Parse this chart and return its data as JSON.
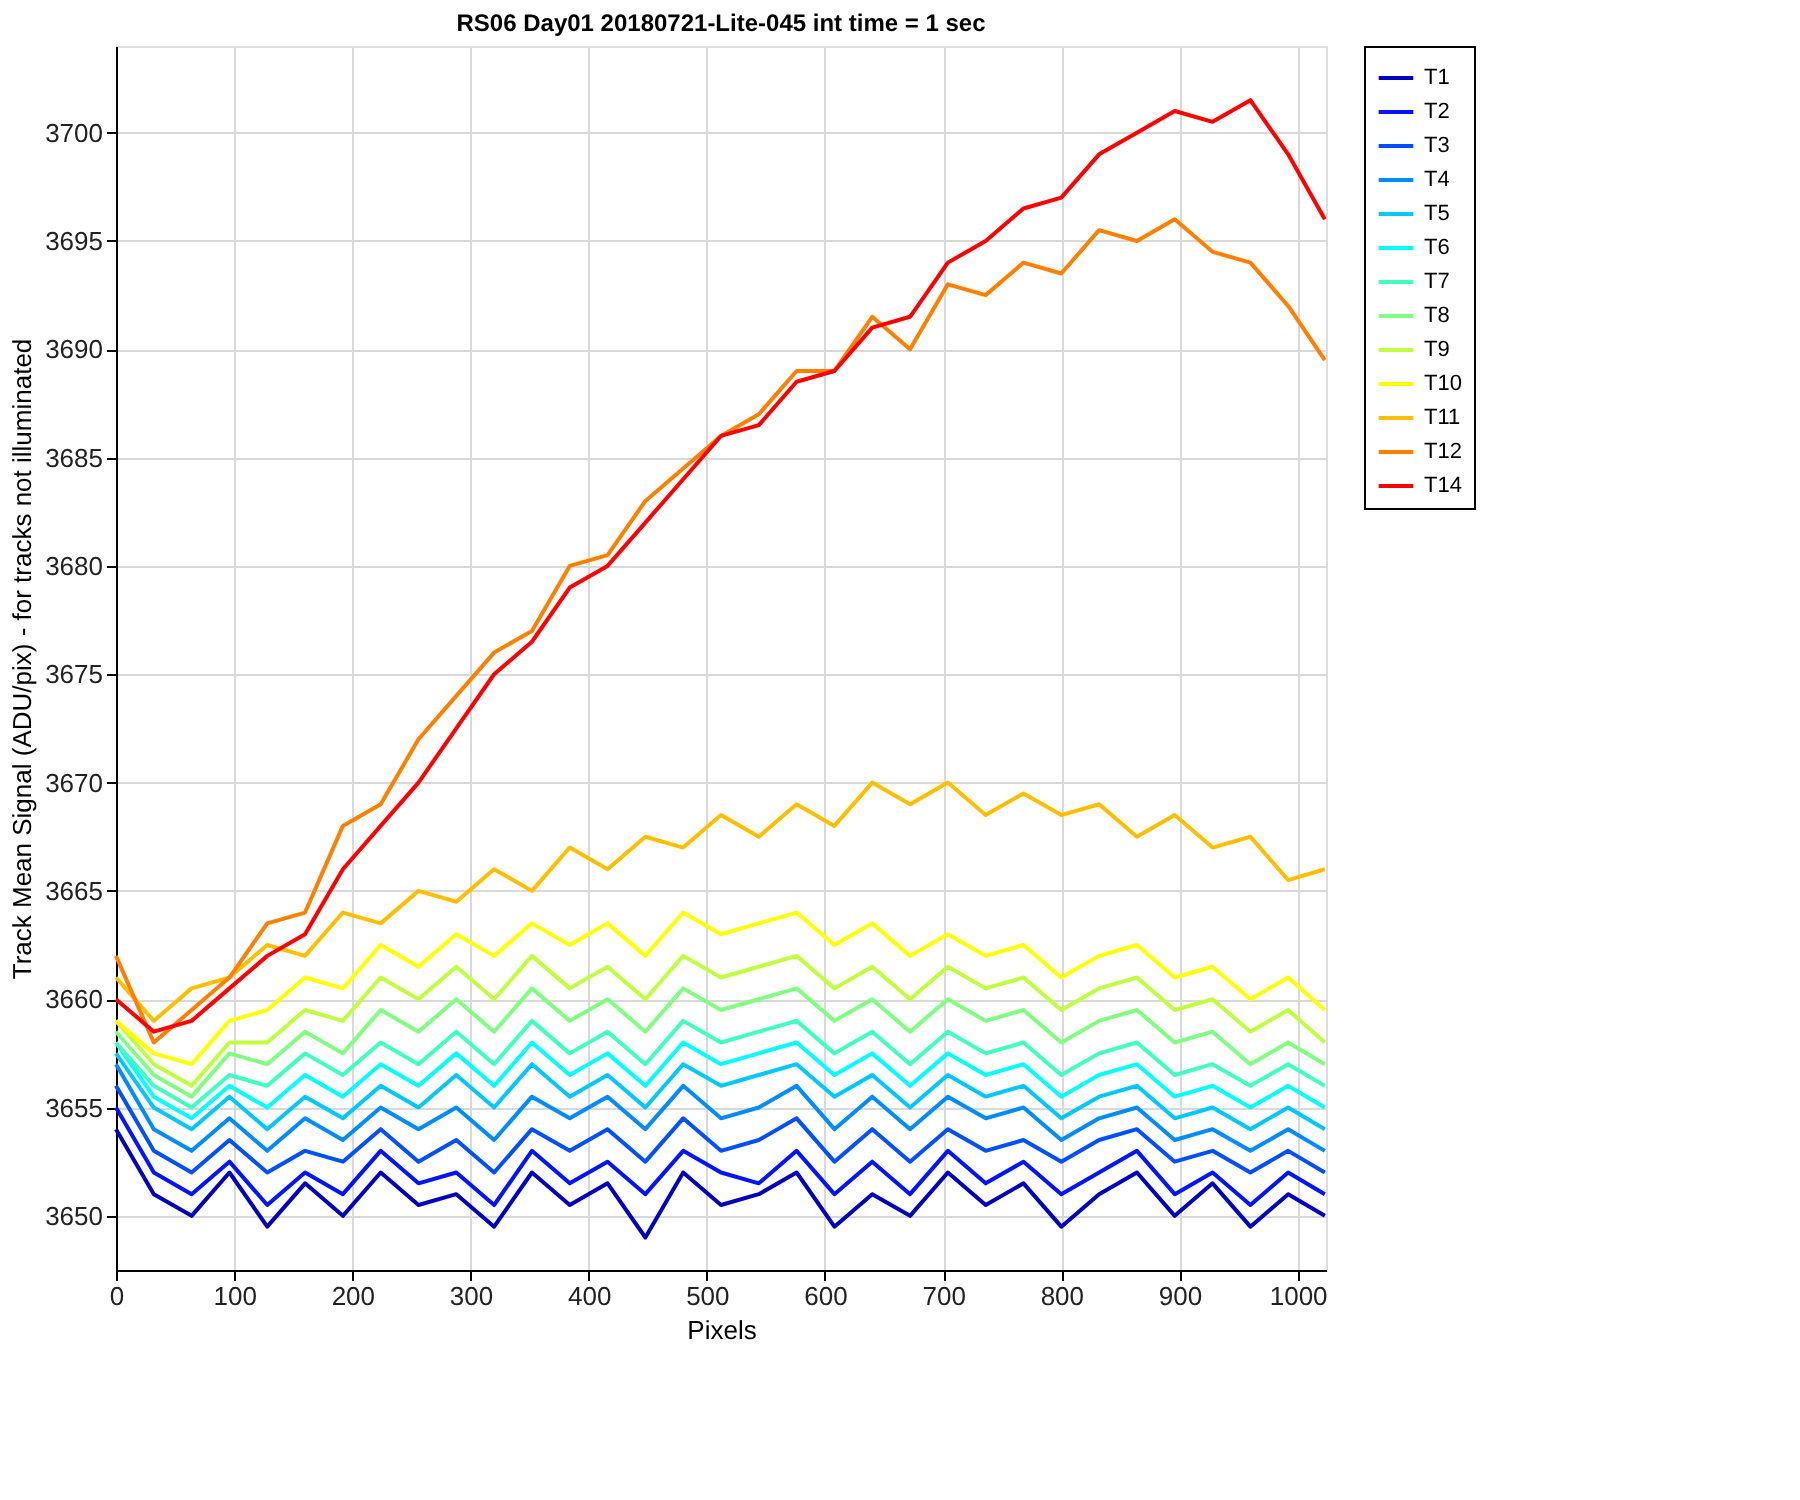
{
  "chart_data": {
    "type": "line",
    "title": "RS06 Day01 20180721-Lite-045 int time = 1 sec",
    "xlabel": "Pixels",
    "ylabel": "Track Mean Signal (ADU/pix) - for tracks not illuminated",
    "x": [
      0,
      32,
      64,
      96,
      128,
      160,
      192,
      224,
      256,
      288,
      320,
      352,
      384,
      416,
      448,
      480,
      512,
      544,
      576,
      608,
      640,
      672,
      704,
      736,
      768,
      800,
      832,
      864,
      896,
      928,
      960,
      992,
      1023
    ],
    "series": [
      {
        "name": "T1",
        "color": "#0000bf",
        "values": [
          3654,
          3651,
          3650,
          3652,
          3649.5,
          3651.5,
          3650,
          3652,
          3650.5,
          3651,
          3649.5,
          3652,
          3650.5,
          3651.5,
          3649,
          3652,
          3650.5,
          3651,
          3652,
          3649.5,
          3651,
          3650,
          3652,
          3650.5,
          3651.5,
          3649.5,
          3651,
          3652,
          3650,
          3651.5,
          3649.5,
          3651,
          3650
        ]
      },
      {
        "name": "T2",
        "color": "#0014ff",
        "values": [
          3655,
          3652,
          3651,
          3652.5,
          3650.5,
          3652,
          3651,
          3653,
          3651.5,
          3652,
          3650.5,
          3653,
          3651.5,
          3652.5,
          3651,
          3653,
          3652,
          3651.5,
          3653,
          3651,
          3652.5,
          3651,
          3653,
          3651.5,
          3652.5,
          3651,
          3652,
          3653,
          3651,
          3652,
          3650.5,
          3652,
          3651
        ]
      },
      {
        "name": "T3",
        "color": "#0050ff",
        "values": [
          3656,
          3653,
          3652,
          3653.5,
          3652,
          3653,
          3652.5,
          3654,
          3652.5,
          3653.5,
          3652,
          3654,
          3653,
          3654,
          3652.5,
          3654.5,
          3653,
          3653.5,
          3654.5,
          3652.5,
          3654,
          3652.5,
          3654,
          3653,
          3653.5,
          3652.5,
          3653.5,
          3654,
          3652.5,
          3653,
          3652,
          3653,
          3652
        ]
      },
      {
        "name": "T4",
        "color": "#008cff",
        "values": [
          3657,
          3654,
          3653,
          3654.5,
          3653,
          3654.5,
          3653.5,
          3655,
          3654,
          3655,
          3653.5,
          3655.5,
          3654.5,
          3655.5,
          3654,
          3656,
          3654.5,
          3655,
          3656,
          3654,
          3655.5,
          3654,
          3655.5,
          3654.5,
          3655,
          3653.5,
          3654.5,
          3655,
          3653.5,
          3654,
          3653,
          3654,
          3653
        ]
      },
      {
        "name": "T5",
        "color": "#00c8ff",
        "values": [
          3657.5,
          3655,
          3654,
          3655.5,
          3654,
          3655.5,
          3654.5,
          3656,
          3655,
          3656.5,
          3655,
          3657,
          3655.5,
          3656.5,
          3655,
          3657,
          3656,
          3656.5,
          3657,
          3655.5,
          3656.5,
          3655,
          3656.5,
          3655.5,
          3656,
          3654.5,
          3655.5,
          3656,
          3654.5,
          3655,
          3654,
          3655,
          3654
        ]
      },
      {
        "name": "T6",
        "color": "#00ffff",
        "values": [
          3658,
          3655.5,
          3654.5,
          3656,
          3655,
          3656.5,
          3655.5,
          3657,
          3656,
          3657.5,
          3656,
          3658,
          3656.5,
          3657.5,
          3656,
          3658,
          3657,
          3657.5,
          3658,
          3656.5,
          3657.5,
          3656,
          3657.5,
          3656.5,
          3657,
          3655.5,
          3656.5,
          3657,
          3655.5,
          3656,
          3655,
          3656,
          3655
        ]
      },
      {
        "name": "T7",
        "color": "#40ffc0",
        "values": [
          3658,
          3656,
          3655,
          3656.5,
          3656,
          3657.5,
          3656.5,
          3658,
          3657,
          3658.5,
          3657,
          3659,
          3657.5,
          3658.5,
          3657,
          3659,
          3658,
          3658.5,
          3659,
          3657.5,
          3658.5,
          3657,
          3658.5,
          3657.5,
          3658,
          3656.5,
          3657.5,
          3658,
          3656.5,
          3657,
          3656,
          3657,
          3656
        ]
      },
      {
        "name": "T8",
        "color": "#80ff80",
        "values": [
          3658.5,
          3656.5,
          3655.5,
          3657.5,
          3657,
          3658.5,
          3657.5,
          3659.5,
          3658.5,
          3660,
          3658.5,
          3660.5,
          3659,
          3660,
          3658.5,
          3660.5,
          3659.5,
          3660,
          3660.5,
          3659,
          3660,
          3658.5,
          3660,
          3659,
          3659.5,
          3658,
          3659,
          3659.5,
          3658,
          3658.5,
          3657,
          3658,
          3657
        ]
      },
      {
        "name": "T9",
        "color": "#c0ff40",
        "values": [
          3659,
          3657,
          3656,
          3658,
          3658,
          3659.5,
          3659,
          3661,
          3660,
          3661.5,
          3660,
          3662,
          3660.5,
          3661.5,
          3660,
          3662,
          3661,
          3661.5,
          3662,
          3660.5,
          3661.5,
          3660,
          3661.5,
          3660.5,
          3661,
          3659.5,
          3660.5,
          3661,
          3659.5,
          3660,
          3658.5,
          3659.5,
          3658
        ]
      },
      {
        "name": "T10",
        "color": "#ffff00",
        "values": [
          3659,
          3657.5,
          3657,
          3659,
          3659.5,
          3661,
          3660.5,
          3662.5,
          3661.5,
          3663,
          3662,
          3663.5,
          3662.5,
          3663.5,
          3662,
          3664,
          3663,
          3663.5,
          3664,
          3662.5,
          3663.5,
          3662,
          3663,
          3662,
          3662.5,
          3661,
          3662,
          3662.5,
          3661,
          3661.5,
          3660,
          3661,
          3659.5
        ]
      },
      {
        "name": "T11",
        "color": "#ffbf00",
        "values": [
          3661,
          3659,
          3660.5,
          3661,
          3662.5,
          3662,
          3664,
          3663.5,
          3665,
          3664.5,
          3666,
          3665,
          3667,
          3666,
          3667.5,
          3667,
          3668.5,
          3667.5,
          3669,
          3668,
          3670,
          3669,
          3670,
          3668.5,
          3669.5,
          3668.5,
          3669,
          3667.5,
          3668.5,
          3667,
          3667.5,
          3665.5,
          3666
        ]
      },
      {
        "name": "T12",
        "color": "#ff8000",
        "values": [
          3662,
          3658,
          3659.5,
          3661,
          3663.5,
          3664,
          3668,
          3669,
          3672,
          3674,
          3676,
          3677,
          3680,
          3680.5,
          3683,
          3684.5,
          3686,
          3687,
          3689,
          3689,
          3691.5,
          3690,
          3693,
          3692.5,
          3694,
          3693.5,
          3695.5,
          3695,
          3696,
          3694.5,
          3694,
          3692,
          3689.5
        ]
      },
      {
        "name": "T14",
        "color": "#ff0000",
        "values": [
          3660,
          3658.5,
          3659,
          3660.5,
          3662,
          3663,
          3666,
          3668,
          3670,
          3672.5,
          3675,
          3676.5,
          3679,
          3680,
          3682,
          3684,
          3686,
          3686.5,
          3688.5,
          3689,
          3691,
          3691.5,
          3694,
          3695,
          3696.5,
          3697,
          3699,
          3700,
          3701,
          3700.5,
          3701.5,
          3699,
          3696
        ]
      }
    ],
    "xlim": [
      0,
      1024
    ],
    "ylim": [
      3647.5,
      3704
    ],
    "xticks": [
      0,
      100,
      200,
      300,
      400,
      500,
      600,
      700,
      800,
      900,
      1000
    ],
    "yticks": [
      3650,
      3655,
      3660,
      3665,
      3670,
      3675,
      3680,
      3685,
      3690,
      3695,
      3700
    ],
    "grid": true,
    "legend": "top right",
    "marker": "none",
    "line_style": "solid"
  }
}
